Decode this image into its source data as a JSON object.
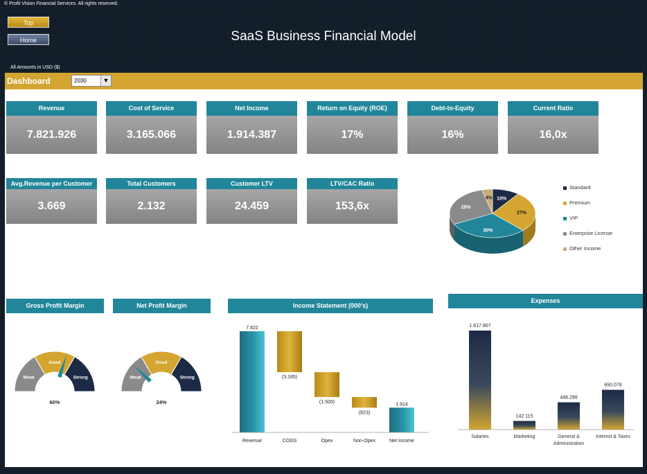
{
  "header": {
    "copyright": "© Profit Vision Financial Services. All rights reserved.",
    "top_button": "Top",
    "home_button": "Home",
    "title": "SaaS Business Financial Model",
    "currency_note": "All Amounts in  USD ($)"
  },
  "dashboard": {
    "label": "Dashboard",
    "year_selected": "2030"
  },
  "kpis_row1": [
    {
      "label": "Revenue",
      "value": "7.821.926"
    },
    {
      "label": "Cost of Service",
      "value": "3.165.066"
    },
    {
      "label": "Net Income",
      "value": "1.914.387"
    },
    {
      "label": "Return on Equity (ROE)",
      "value": "17%"
    },
    {
      "label": "Debt-to-Equity",
      "value": "16%"
    },
    {
      "label": "Current Ratio",
      "value": "16,0x"
    }
  ],
  "kpis_row2": [
    {
      "label": "Avg.Revenue per Customer",
      "value": "3.669"
    },
    {
      "label": "Total Customers",
      "value": "2.132"
    },
    {
      "label": "Customer LTV",
      "value": "24.459"
    },
    {
      "label": "LTV/CAC Ratio",
      "value": "153,6x"
    }
  ],
  "colors": {
    "teal": "#22869a",
    "gold": "#d4a631",
    "navy": "#1c2a45",
    "gray": "#8a8a8a",
    "tan": "#c9ad78"
  },
  "chart_data": [
    {
      "type": "pie",
      "name": "customer-mix",
      "labels": [
        "Standard",
        "Premium",
        "VIP",
        "Enterprise License",
        "Other Income"
      ],
      "values": [
        10,
        27,
        30,
        28,
        4
      ],
      "value_labels": [
        "10%",
        "27%",
        "30%",
        "28%",
        "4%"
      ]
    },
    {
      "type": "gauge",
      "title": "Gross Profit Margin",
      "bands": [
        "Weak",
        "Good",
        "Strong"
      ],
      "value": 60,
      "value_label": "60%"
    },
    {
      "type": "gauge",
      "title": "Net Profit Margin",
      "bands": [
        "Weak",
        "Good",
        "Strong"
      ],
      "value": 24,
      "value_label": "24%"
    },
    {
      "type": "bar",
      "subtype": "waterfall",
      "title": "Income Statement (000's)",
      "categories": [
        "Revenue",
        "COGS",
        "Opex",
        "Non-Opex",
        "Net Income"
      ],
      "values": [
        7822,
        -3165,
        -1920,
        -823,
        1914
      ],
      "value_labels": [
        "7.822",
        "(3.165)",
        "(1.920)",
        "(823)",
        "1.914"
      ]
    },
    {
      "type": "bar",
      "title": "Expenses",
      "categories": [
        "Salaries",
        "Marketing",
        "General & Administration",
        "Interest & Taxes"
      ],
      "category_lines": [
        [
          "Salaries"
        ],
        [
          "Marketing"
        ],
        [
          "General &",
          "Administration"
        ],
        [
          "Interest & Taxes"
        ]
      ],
      "values": [
        1617907,
        142115,
        446299,
        650078
      ],
      "value_labels": [
        "1.617.907",
        "142.115",
        "446.299",
        "650.078"
      ]
    }
  ]
}
